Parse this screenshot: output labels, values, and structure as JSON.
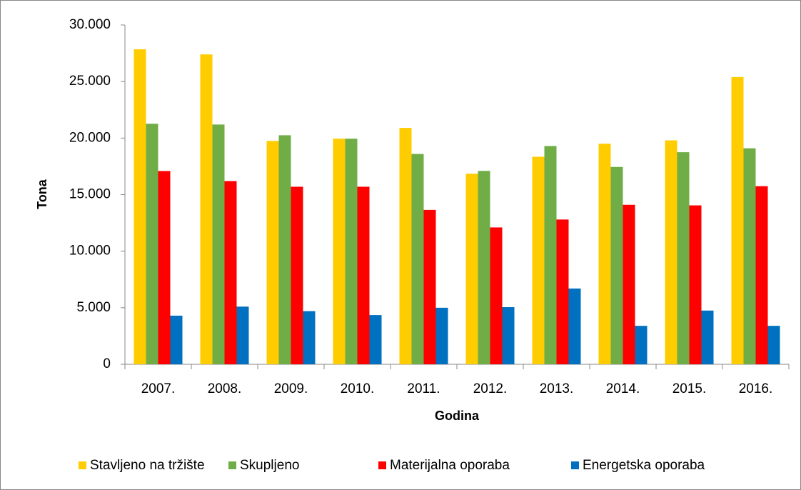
{
  "chart_data": {
    "type": "bar",
    "y_label": "Tona",
    "x_label": "Godina",
    "categories": [
      "2007.",
      "2008.",
      "2009.",
      "2010.",
      "2011.",
      "2012.",
      "2013.",
      "2014.",
      "2015.",
      "2016."
    ],
    "series": [
      {
        "name": "Stavljeno na tržište",
        "color": "#ffcc00",
        "values": [
          27850,
          27400,
          19750,
          19950,
          20900,
          16850,
          18350,
          19500,
          19800,
          25400
        ]
      },
      {
        "name": "Skupljeno",
        "color": "#70ad47",
        "values": [
          21270,
          21200,
          20250,
          19950,
          18600,
          17100,
          19300,
          17450,
          18750,
          19100
        ]
      },
      {
        "name": "Materijalna oporaba",
        "color": "#ff0000",
        "values": [
          17090,
          16200,
          15700,
          15700,
          13650,
          12100,
          12800,
          14100,
          14050,
          15750
        ]
      },
      {
        "name": "Energetska oporaba",
        "color": "#0070c0",
        "values": [
          4300,
          5100,
          4700,
          4350,
          5000,
          5050,
          6700,
          3400,
          4750,
          3400
        ]
      }
    ],
    "ylim": [
      0,
      30000
    ],
    "yticks": [
      0,
      {
        "value": 5000,
        "label": "5.000"
      },
      {
        "value": 10000,
        "label": "10.000"
      },
      {
        "value": 15000,
        "label": "15.000"
      },
      {
        "value": 20000,
        "label": "20.000"
      },
      {
        "value": 25000,
        "label": "25.000"
      },
      {
        "value": 30000,
        "label": "30.000"
      }
    ],
    "grid": false,
    "legend": "bottom"
  }
}
